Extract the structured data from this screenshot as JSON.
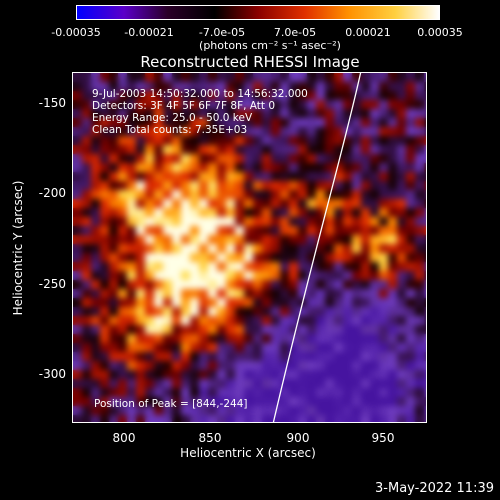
{
  "colorbar": {
    "ticks": [
      "-0.00035",
      "-0.00021",
      "-7.0e-05",
      "7.0e-05",
      "0.00021",
      "0.00035"
    ],
    "unit": "(photons cm⁻² s⁻¹ asec⁻²)",
    "colors": [
      "#0000ff",
      "#5a00c8",
      "#2a0028",
      "#000000",
      "#8a0000",
      "#e03000",
      "#ff9000",
      "#ffd040",
      "#ffffff"
    ]
  },
  "title": "Reconstructed RHESSI Image",
  "info": {
    "line1": "9-Jul-2003 14:50:32.000 to 14:56:32.000",
    "line2": "Detectors: 3F 4F 5F 6F 7F 8F, Att 0",
    "line3": "Energy Range: 25.0 - 50.0 keV",
    "line4": "Clean      Total counts: 7.35E+03"
  },
  "peak_text": "Position of Peak = [844,-244]",
  "axes": {
    "xlabel": "Heliocentric X (arcsec)",
    "ylabel": "Heliocentric Y (arcsec)",
    "xticks": [
      "800",
      "850",
      "900",
      "950"
    ],
    "yticks": [
      "-150",
      "-200",
      "-250",
      "-300"
    ]
  },
  "timestamp": "3-May-2022 11:39"
}
